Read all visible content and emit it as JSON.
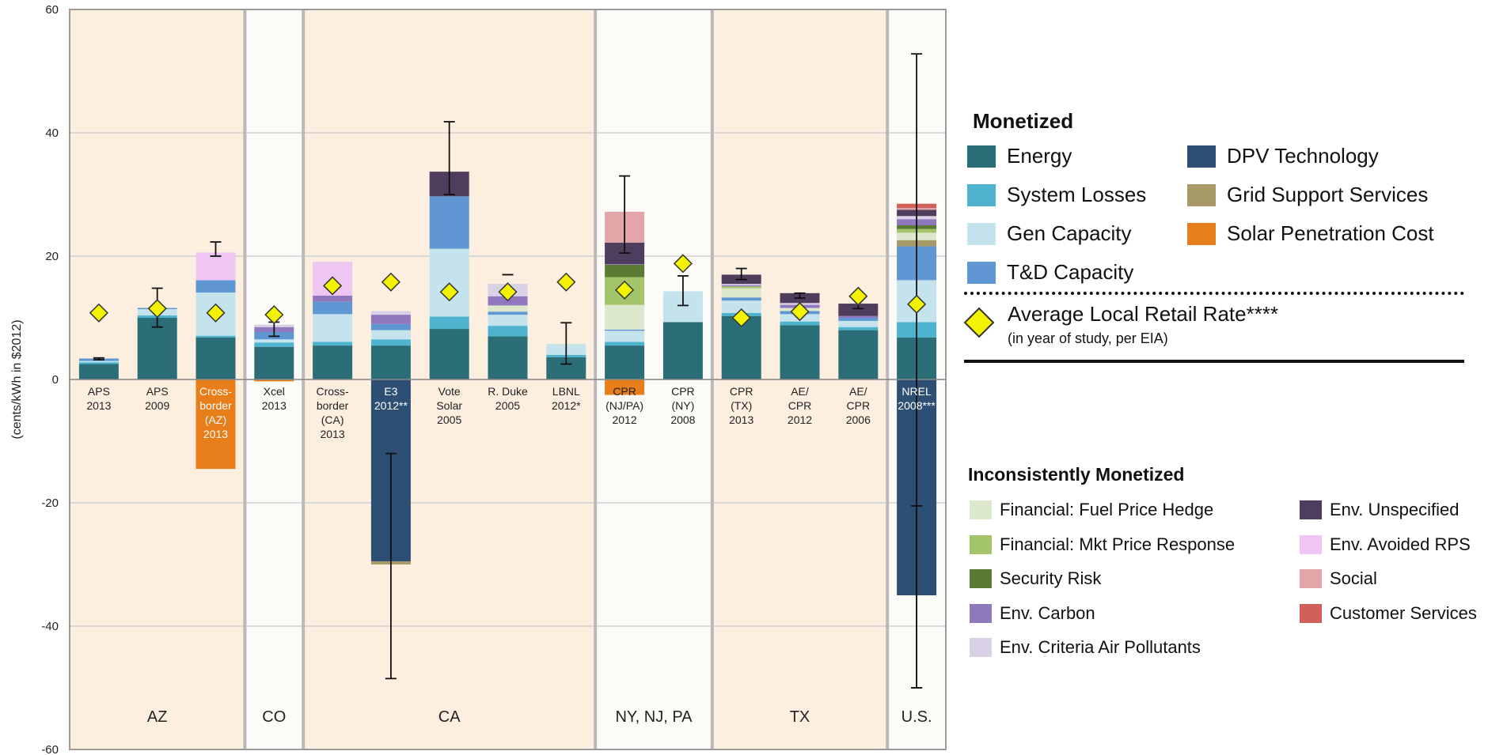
{
  "chart_data": {
    "type": "bar",
    "stacked": true,
    "ylabel": "(cents/kWh in $2012)",
    "ylim": [
      -60,
      60
    ],
    "yticks": [
      -60,
      -40,
      -20,
      0,
      20,
      40,
      60
    ],
    "grid": true,
    "regions": [
      {
        "label": "AZ",
        "start": 0,
        "end": 2,
        "shaded": true
      },
      {
        "label": "CO",
        "start": 3,
        "end": 3,
        "shaded": false
      },
      {
        "label": "CA",
        "start": 4,
        "end": 8,
        "shaded": true
      },
      {
        "label": "NY, NJ, PA",
        "start": 9,
        "end": 10,
        "shaded": false
      },
      {
        "label": "TX",
        "start": 11,
        "end": 13,
        "shaded": true
      },
      {
        "label": "U.S.",
        "start": 14,
        "end": 14,
        "shaded": false
      }
    ],
    "categories": [
      {
        "lines": [
          "APS",
          "2013"
        ],
        "white": false
      },
      {
        "lines": [
          "APS",
          "2009"
        ],
        "white": false
      },
      {
        "lines": [
          "Cross-",
          "border",
          "(AZ)",
          "2013"
        ],
        "white": true
      },
      {
        "lines": [
          "Xcel",
          "2013"
        ],
        "white": false
      },
      {
        "lines": [
          "Cross-",
          "border",
          "(CA)",
          "2013"
        ],
        "white": false
      },
      {
        "lines": [
          "E3",
          "2012**"
        ],
        "white": true
      },
      {
        "lines": [
          "Vote",
          "Solar",
          "2005"
        ],
        "white": false
      },
      {
        "lines": [
          "R. Duke",
          "2005"
        ],
        "white": false
      },
      {
        "lines": [
          "LBNL",
          "2012*"
        ],
        "white": false
      },
      {
        "lines": [
          "CPR",
          "(NJ/PA)",
          "2012"
        ],
        "white": false
      },
      {
        "lines": [
          "CPR",
          "(NY)",
          "2008"
        ],
        "white": false
      },
      {
        "lines": [
          "CPR",
          "(TX)",
          "2013"
        ],
        "white": false
      },
      {
        "lines": [
          "AE/",
          "CPR",
          "2012"
        ],
        "white": false
      },
      {
        "lines": [
          "AE/",
          "CPR",
          "2006"
        ],
        "white": false
      },
      {
        "lines": [
          "NREL",
          "2008***"
        ],
        "white": true
      }
    ],
    "series": [
      {
        "name": "Energy",
        "color": "#2c6e78",
        "values": [
          2.5,
          10,
          6.8,
          5.3,
          5.5,
          5.5,
          8.2,
          7,
          3.6,
          5.5,
          9.3,
          10.3,
          8.8,
          8,
          6.8
        ]
      },
      {
        "name": "System Losses",
        "color": "#4db3cf",
        "values": [
          0.3,
          0.4,
          0.3,
          0.7,
          0.6,
          1,
          2,
          1.7,
          0.4,
          0.6,
          0,
          0.5,
          0.6,
          0.5,
          2.5
        ]
      },
      {
        "name": "Gen Capacity",
        "color": "#c4e3ec",
        "values": [
          0.2,
          1,
          7,
          0.5,
          4.5,
          1.5,
          11,
          1.8,
          1.7,
          1.8,
          5,
          2,
          1.2,
          1,
          6.8
        ]
      },
      {
        "name": "T&D Capacity",
        "color": "#5e97d1",
        "values": [
          0.4,
          0.2,
          2,
          1.2,
          2,
          1,
          8.5,
          0.5,
          0,
          0.2,
          0,
          0.5,
          0.5,
          0.5,
          5.5
        ]
      },
      {
        "name": "DPV Technology",
        "color": "#2d4f73",
        "values": [
          0,
          0,
          0,
          0,
          0,
          -29.5,
          0,
          0,
          0,
          0,
          0,
          0,
          0,
          0,
          -35
        ]
      },
      {
        "name": "Grid Support Services",
        "color": "#a89a66",
        "values": [
          0,
          0,
          0,
          0,
          0,
          -0.5,
          0,
          0,
          0,
          0,
          0,
          0,
          0,
          0,
          1
        ]
      },
      {
        "name": "Solar Penetration Cost",
        "color": "#e87e1a",
        "values": [
          0,
          0,
          -14.5,
          -0.3,
          0,
          0,
          0,
          0,
          0,
          -2.5,
          0,
          0,
          0,
          0,
          0
        ]
      },
      {
        "name": "Financial: Fuel Price Hedge",
        "color": "#dbe8cb",
        "values": [
          0,
          0,
          0,
          0,
          0,
          0,
          0,
          1,
          0.1,
          4,
          0,
          1.5,
          0.5,
          0,
          1.2
        ]
      },
      {
        "name": "Financial: Mkt Price Response",
        "color": "#a4c46c",
        "values": [
          0,
          0,
          0,
          0,
          0,
          0,
          0,
          0,
          0,
          4.5,
          0,
          0.3,
          0,
          0,
          0.6
        ]
      },
      {
        "name": "Security Risk",
        "color": "#5b7a34",
        "values": [
          0,
          0,
          0,
          0,
          0,
          0,
          0,
          0,
          0,
          2,
          0,
          0,
          0,
          0,
          0.6
        ]
      },
      {
        "name": "Env. Carbon",
        "color": "#8f78bd",
        "values": [
          0,
          0,
          0,
          0.8,
          1,
          1.5,
          0,
          1.5,
          0,
          0.1,
          0,
          0.2,
          0.5,
          0.3,
          1
        ]
      },
      {
        "name": "Env. Criteria Air Pollutants",
        "color": "#d9d1e6",
        "values": [
          0,
          0,
          0,
          0.4,
          0,
          0.6,
          0,
          2,
          0,
          0,
          0,
          0.2,
          0.3,
          0,
          0.5
        ]
      },
      {
        "name": "Env. Unspecified",
        "color": "#4f3d5e",
        "values": [
          0,
          0,
          0,
          0,
          0,
          0,
          4,
          0,
          0,
          3.5,
          0,
          1.5,
          1.6,
          2,
          1
        ]
      },
      {
        "name": "Env. Avoided RPS",
        "color": "#efc6f3",
        "values": [
          0,
          0,
          4.5,
          0,
          5.5,
          0,
          0,
          0,
          0,
          0,
          0,
          0,
          0,
          0,
          0
        ]
      },
      {
        "name": "Social",
        "color": "#e2a6a8",
        "values": [
          0,
          0,
          0,
          0,
          0,
          0,
          0,
          0,
          0,
          5,
          0,
          0,
          0,
          0,
          0.3
        ]
      },
      {
        "name": "Customer Services",
        "color": "#d1605a",
        "values": [
          0,
          0,
          0,
          0,
          0,
          0,
          0,
          0,
          0,
          0,
          0,
          0,
          0,
          0,
          0.7
        ]
      }
    ],
    "retail_rate": [
      10.8,
      11.5,
      10.8,
      10.5,
      15.2,
      15.8,
      14.2,
      14.2,
      15.8,
      14.5,
      18.8,
      10,
      11,
      13.5,
      12.2
    ],
    "error_bars": [
      {
        "low": 3.2,
        "high": 3.5
      },
      {
        "low": 8.5,
        "high": 14.8
      },
      {
        "low": 20,
        "high": 22.3
      },
      {
        "low": 7,
        "high": 9.3
      },
      null,
      {
        "low": -48.5,
        "high": -12
      },
      {
        "low": 30,
        "high": 41.8
      },
      {
        "low": 17,
        "high": 17
      },
      {
        "low": 2.5,
        "high": 9.2
      },
      {
        "low": 20.5,
        "high": 33
      },
      {
        "low": 12,
        "high": 16.8
      },
      {
        "low": 16.2,
        "high": 18
      },
      {
        "low": 13.2,
        "high": 14
      },
      {
        "low": 11.5,
        "high": 13
      },
      {
        "low": -50,
        "high": 52.8
      }
    ],
    "error_bars_secondary": [
      null,
      null,
      null,
      null,
      null,
      null,
      null,
      null,
      null,
      null,
      null,
      null,
      null,
      null,
      {
        "low": -50,
        "high": -20.5
      }
    ]
  },
  "legend": {
    "monetized_title": "Monetized",
    "monetized_items_left": [
      {
        "label": "Energy",
        "color": "#2c6e78"
      },
      {
        "label": "System Losses",
        "color": "#4db3cf"
      },
      {
        "label": "Gen Capacity",
        "color": "#c4e3ec"
      },
      {
        "label": "T&D Capacity",
        "color": "#5e97d1"
      }
    ],
    "monetized_items_right": [
      {
        "label": "DPV Technology",
        "color": "#2d4f73"
      },
      {
        "label": "Grid Support Services",
        "color": "#a89a66"
      },
      {
        "label": "Solar Penetration Cost",
        "color": "#e87e1a"
      }
    ],
    "retail_label": "Average Local Retail Rate****",
    "retail_sublabel": "(in year of study, per EIA)",
    "inconsistent_title": "Inconsistently Monetized",
    "inconsistent_items_left": [
      {
        "label": "Financial: Fuel Price Hedge",
        "color": "#dbe8cb"
      },
      {
        "label": "Financial: Mkt Price Response",
        "color": "#a4c46c"
      },
      {
        "label": "Security Risk",
        "color": "#5b7a34"
      },
      {
        "label": "Env. Carbon",
        "color": "#8f78bd"
      },
      {
        "label": "Env. Criteria Air Pollutants",
        "color": "#d9d1e6"
      }
    ],
    "inconsistent_items_right": [
      {
        "label": "Env. Unspecified",
        "color": "#4f3d5e"
      },
      {
        "label": "Env. Avoided RPS",
        "color": "#efc6f3"
      },
      {
        "label": "Social",
        "color": "#e2a6a8"
      },
      {
        "label": "Customer Services",
        "color": "#d1605a"
      }
    ]
  }
}
